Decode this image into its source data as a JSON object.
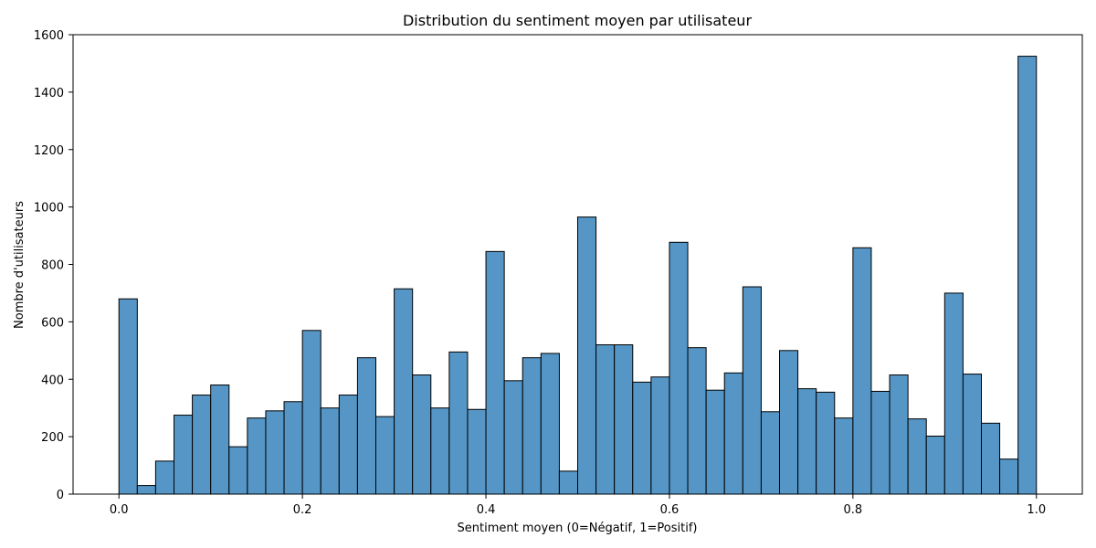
{
  "chart_data": {
    "type": "bar",
    "title": "Distribution du sentiment moyen par utilisateur",
    "xlabel": "Sentiment moyen (0=Négatif, 1=Positif)",
    "ylabel": "Nombre d'utilisateurs",
    "xlim": [
      -0.05,
      1.05
    ],
    "ylim": [
      0,
      1600
    ],
    "xticks": [
      0.0,
      0.2,
      0.4,
      0.6,
      0.8,
      1.0
    ],
    "xtick_labels": [
      "0.0",
      "0.2",
      "0.4",
      "0.6",
      "0.8",
      "1.0"
    ],
    "yticks": [
      0,
      200,
      400,
      600,
      800,
      1000,
      1200,
      1400,
      1600
    ],
    "ytick_labels": [
      "0",
      "200",
      "400",
      "600",
      "800",
      "1000",
      "1200",
      "1400",
      "1600"
    ],
    "bin_range": [
      0,
      1
    ],
    "bin_count": 50,
    "values": [
      680,
      30,
      115,
      275,
      345,
      380,
      165,
      265,
      290,
      322,
      570,
      300,
      345,
      475,
      270,
      715,
      415,
      300,
      495,
      295,
      845,
      395,
      475,
      490,
      80,
      965,
      520,
      520,
      390,
      408,
      877,
      510,
      362,
      422,
      722,
      287,
      500,
      367,
      355,
      265,
      858,
      358,
      415,
      262,
      202,
      700,
      418,
      247,
      122,
      1525
    ],
    "bar_color": "#5596c6",
    "edge_color": "#000000",
    "grid": false,
    "legend": "none"
  }
}
